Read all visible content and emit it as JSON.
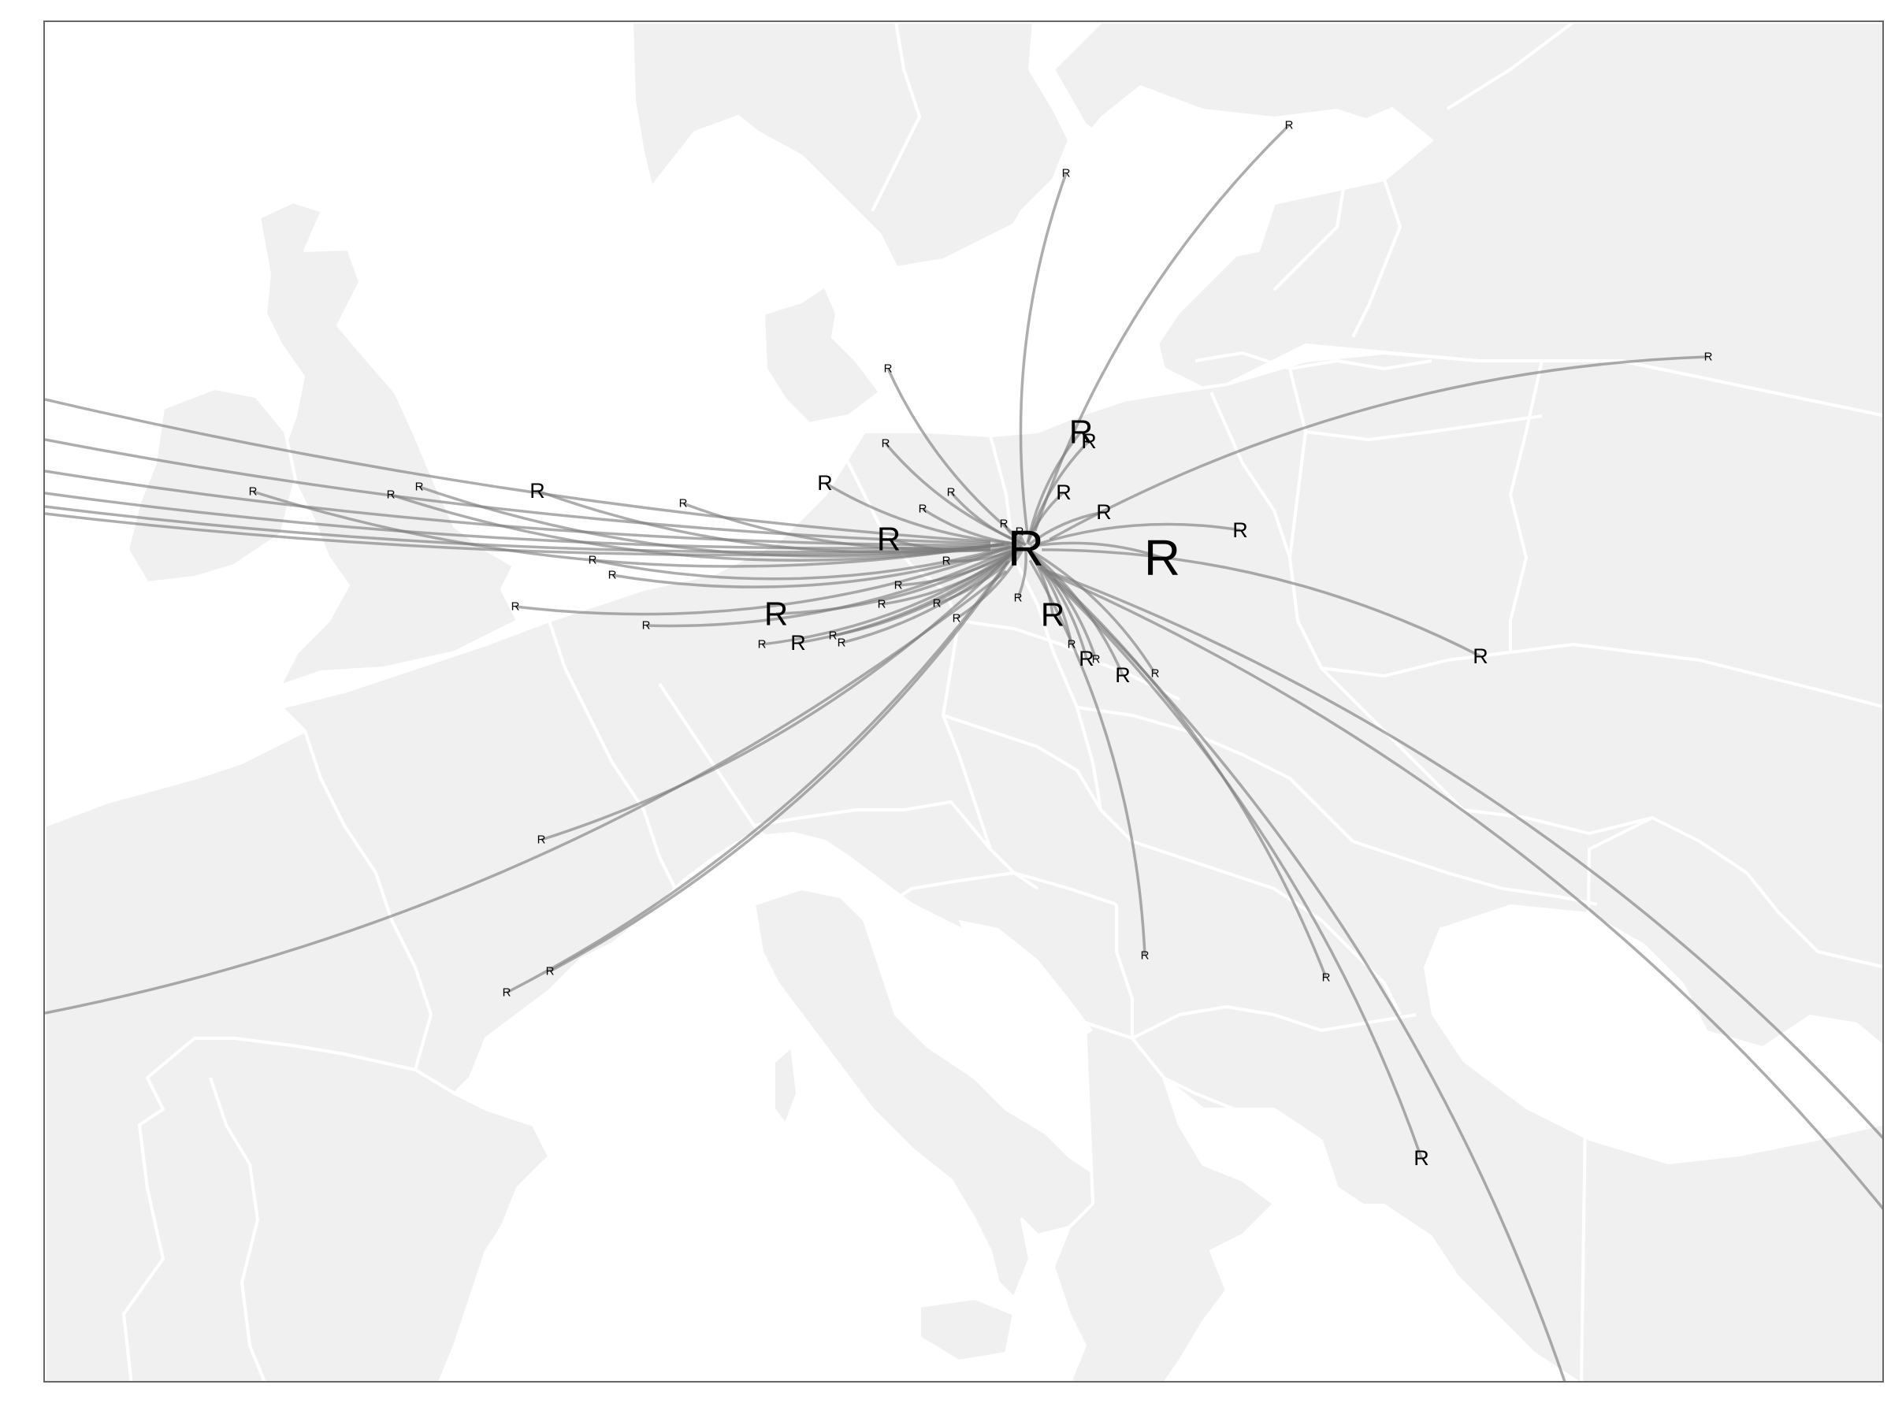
{
  "map": {
    "hub": {
      "label": "R",
      "color": "#ff0000"
    },
    "label_color": "#000000",
    "flow_color": "#7a7a7a",
    "land_color": "#f0f0f0",
    "border_color": "#ffffff",
    "frame_color": "#666666",
    "origins": [
      {
        "label": "R",
        "magnitude": 1,
        "size": "small"
      },
      {
        "label": "R",
        "magnitude": 1,
        "size": "small"
      },
      {
        "label": "R",
        "magnitude": 1,
        "size": "small"
      },
      {
        "label": "R",
        "magnitude": 1,
        "size": "small"
      },
      {
        "label": "R",
        "magnitude": 3,
        "size": "medium"
      },
      {
        "label": "R",
        "magnitude": 3,
        "size": "medium"
      },
      {
        "label": "R",
        "magnitude": 1,
        "size": "small"
      },
      {
        "label": "R",
        "magnitude": 1,
        "size": "small"
      },
      {
        "label": "R",
        "magnitude": 1,
        "size": "small"
      },
      {
        "label": "R",
        "magnitude": 1,
        "size": "small"
      },
      {
        "label": "R",
        "magnitude": 1,
        "size": "small"
      },
      {
        "label": "R",
        "magnitude": 1,
        "size": "small"
      },
      {
        "label": "R",
        "magnitude": 5,
        "size": "large"
      },
      {
        "label": "R",
        "magnitude": 1,
        "size": "small"
      },
      {
        "label": "R",
        "magnitude": 1,
        "size": "small"
      },
      {
        "label": "R",
        "magnitude": 1,
        "size": "small"
      },
      {
        "label": "R",
        "magnitude": 1,
        "size": "small"
      },
      {
        "label": "R",
        "magnitude": 1,
        "size": "small"
      },
      {
        "label": "R",
        "magnitude": 5,
        "size": "large"
      },
      {
        "label": "R",
        "magnitude": 1,
        "size": "small"
      },
      {
        "label": "R",
        "magnitude": 1,
        "size": "small"
      },
      {
        "label": "R",
        "magnitude": 3,
        "size": "medium"
      },
      {
        "label": "R",
        "magnitude": 3,
        "size": "medium"
      },
      {
        "label": "R",
        "magnitude": 1,
        "size": "small"
      },
      {
        "label": "R",
        "magnitude": 1,
        "size": "small"
      },
      {
        "label": "R",
        "magnitude": 1,
        "size": "small"
      },
      {
        "label": "R",
        "magnitude": 1,
        "size": "small"
      },
      {
        "label": "R",
        "magnitude": 1,
        "size": "small"
      },
      {
        "label": "R",
        "magnitude": 1,
        "size": "small"
      },
      {
        "label": "R",
        "magnitude": 1,
        "size": "small"
      },
      {
        "label": "R",
        "magnitude": 5,
        "size": "large"
      },
      {
        "label": "R",
        "magnitude": 4,
        "size": "large"
      },
      {
        "label": "R",
        "magnitude": 3,
        "size": "medium"
      },
      {
        "label": "R",
        "magnitude": 3,
        "size": "medium"
      },
      {
        "label": "R",
        "magnitude": 1,
        "size": "small"
      },
      {
        "label": "R",
        "magnitude": 3,
        "size": "medium"
      },
      {
        "label": "R",
        "magnitude": 3,
        "size": "medium"
      },
      {
        "label": "R",
        "magnitude": 6,
        "size": "xlarge"
      },
      {
        "label": "R",
        "magnitude": 3,
        "size": "medium"
      },
      {
        "label": "R",
        "magnitude": 1,
        "size": "small"
      },
      {
        "label": "R",
        "magnitude": 1,
        "size": "small"
      },
      {
        "label": "R",
        "magnitude": 1,
        "size": "small"
      },
      {
        "label": "R",
        "magnitude": 1,
        "size": "small"
      },
      {
        "label": "R",
        "magnitude": 4,
        "size": "medium"
      },
      {
        "label": "R",
        "magnitude": 4,
        "size": "medium"
      },
      {
        "label": "R",
        "magnitude": 1,
        "size": "small"
      },
      {
        "label": "R",
        "magnitude": 1,
        "size": "small"
      },
      {
        "label": "R",
        "magnitude": 1,
        "size": "small"
      },
      {
        "label": "R",
        "magnitude": 1,
        "size": "small"
      },
      {
        "label": "R",
        "magnitude": 1,
        "size": "small"
      }
    ]
  }
}
